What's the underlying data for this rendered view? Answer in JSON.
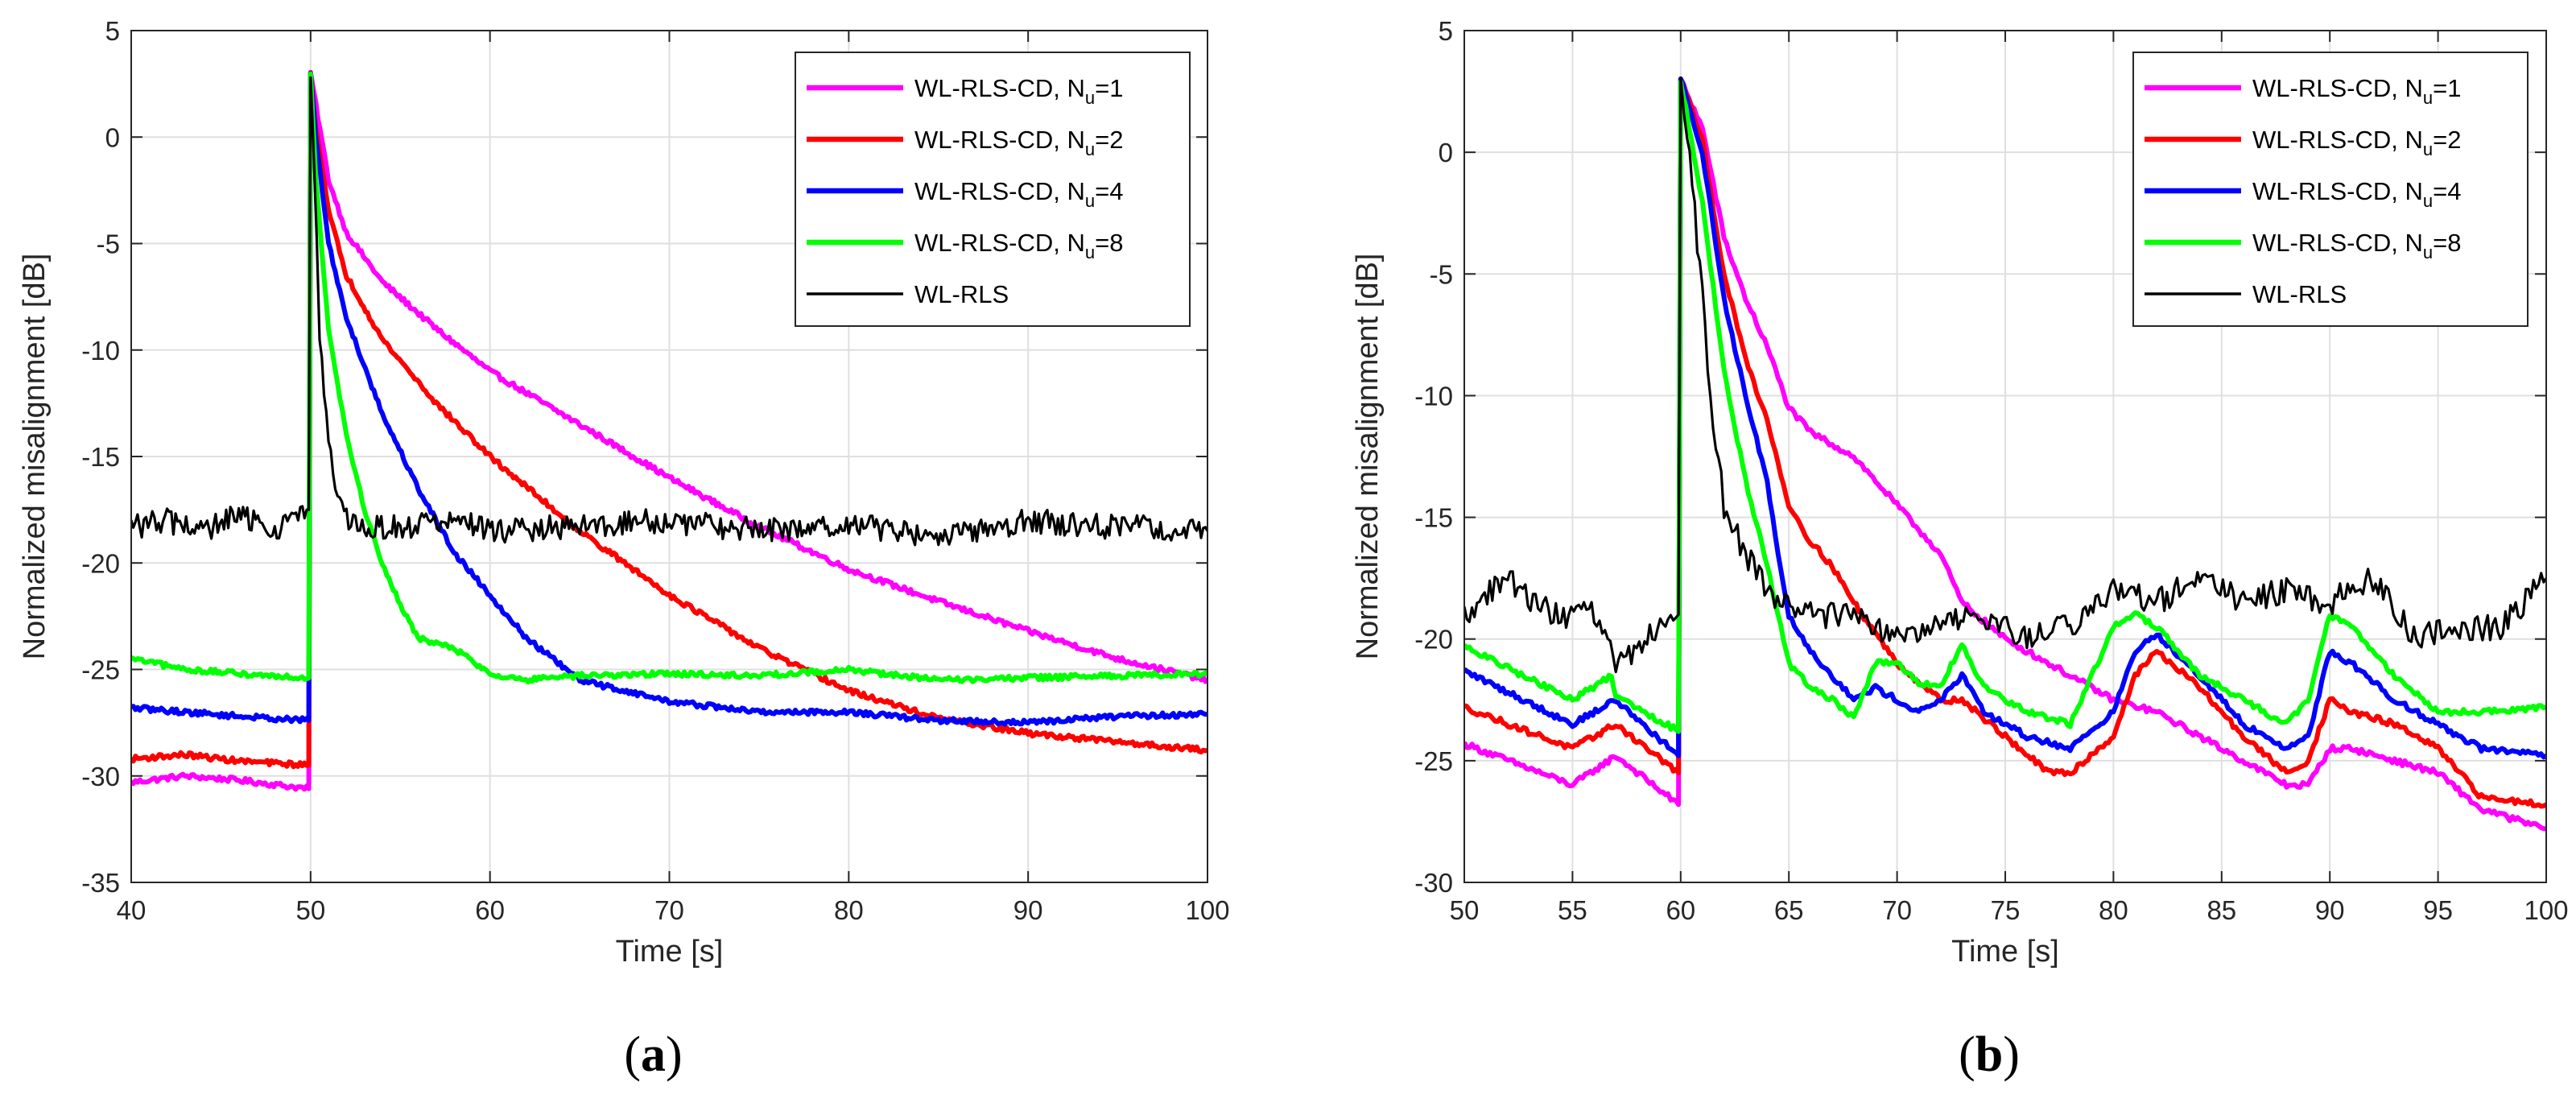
{
  "chart_data": [
    {
      "type": "line",
      "panel_label": "a",
      "xlabel": "Time [s]",
      "ylabel": "Normalized misalignment [dB]",
      "xlim": [
        40,
        100
      ],
      "ylim": [
        -35,
        5
      ],
      "xticks": [
        40,
        50,
        60,
        70,
        80,
        90,
        100
      ],
      "yticks": [
        5,
        0,
        -5,
        -10,
        -15,
        -20,
        -25,
        -30,
        -35
      ],
      "grid": true,
      "legend_position": "top-right",
      "series": [
        {
          "name": "WL-RLS-CD, N_u=1",
          "label_main": "WL-RLS-CD, N",
          "label_sub": "u",
          "label_tail": "=1",
          "color": "#ff00ff",
          "width": 3,
          "x": [
            40,
            43,
            46,
            49.9,
            50,
            50.3,
            51,
            52,
            54,
            57,
            60,
            65,
            70,
            75,
            80,
            85,
            90,
            95,
            100
          ],
          "y": [
            -30.3,
            -30.0,
            -30.2,
            -30.6,
            3.0,
            1.5,
            -2.0,
            -4.5,
            -6.8,
            -9.0,
            -11.0,
            -13.5,
            -16.0,
            -18.3,
            -20.3,
            -21.8,
            -23.2,
            -24.5,
            -25.5
          ]
        },
        {
          "name": "WL-RLS-CD, N_u=2",
          "label_main": "WL-RLS-CD, N",
          "label_sub": "u",
          "label_tail": "=2",
          "color": "#ff0000",
          "width": 3,
          "x": [
            40,
            43,
            46,
            49.9,
            50,
            50.3,
            51,
            52,
            54,
            57,
            60,
            65,
            70,
            75,
            80,
            85,
            90,
            95,
            100
          ],
          "y": [
            -29.2,
            -29.0,
            -29.3,
            -29.5,
            3.0,
            0.5,
            -3.5,
            -6.5,
            -9.5,
            -12.5,
            -15.0,
            -18.5,
            -21.5,
            -24.0,
            -26.0,
            -27.3,
            -28.0,
            -28.4,
            -28.8
          ]
        },
        {
          "name": "WL-RLS-CD, N_u=4",
          "label_main": "WL-RLS-CD, N",
          "label_sub": "u",
          "label_tail": "=4",
          "color": "#0000ff",
          "width": 3,
          "x": [
            40,
            43,
            46,
            49.9,
            50,
            50.3,
            51,
            52,
            54,
            56,
            58,
            60,
            62,
            65,
            70,
            75,
            80,
            85,
            90,
            95,
            100
          ],
          "y": [
            -26.8,
            -27.0,
            -27.2,
            -27.4,
            3.0,
            0.0,
            -5.0,
            -8.5,
            -13.0,
            -16.5,
            -19.5,
            -21.5,
            -23.5,
            -25.5,
            -26.5,
            -27.0,
            -27.0,
            -27.4,
            -27.5,
            -27.2,
            -27.1
          ]
        },
        {
          "name": "WL-RLS-CD, N_u=8",
          "label_main": "WL-RLS-CD, N",
          "label_sub": "u",
          "label_tail": "=8",
          "color": "#00ff00",
          "width": 3,
          "x": [
            40,
            43,
            46,
            49.9,
            50,
            50.3,
            51,
            52,
            53,
            54,
            55,
            56,
            57,
            58,
            60,
            62,
            65,
            70,
            75,
            80,
            85,
            90,
            95,
            100
          ],
          "y": [
            -24.5,
            -25.0,
            -25.2,
            -25.4,
            3.0,
            -2.0,
            -9.0,
            -14.0,
            -17.5,
            -20.0,
            -22.0,
            -23.5,
            -23.8,
            -24.0,
            -25.2,
            -25.5,
            -25.3,
            -25.2,
            -25.3,
            -25.0,
            -25.5,
            -25.4,
            -25.3,
            -25.2
          ]
        },
        {
          "name": "WL-RLS",
          "label_main": "WL-RLS",
          "label_sub": "",
          "label_tail": "",
          "color": "#000000",
          "width": 1.6,
          "x": [
            40,
            42,
            44,
            46,
            48,
            49.9,
            50,
            50.2,
            50.5,
            51,
            51.5,
            52,
            53,
            55,
            58,
            60,
            65,
            70,
            75,
            80,
            85,
            90,
            95,
            100
          ],
          "y": [
            -18.3,
            -18.0,
            -18.5,
            -17.8,
            -18.4,
            -17.5,
            3.0,
            -2.0,
            -9.0,
            -14.5,
            -17.0,
            -18.0,
            -18.4,
            -18.3,
            -18.0,
            -18.5,
            -18.3,
            -18.0,
            -18.5,
            -18.2,
            -18.8,
            -18.0,
            -18.3,
            -18.5
          ],
          "noise": 0.6
        }
      ]
    },
    {
      "type": "line",
      "panel_label": "b",
      "xlabel": "Time [s]",
      "ylabel": "Normalized misalignment [dB]",
      "xlim": [
        50,
        100
      ],
      "ylim": [
        -30,
        5
      ],
      "xticks": [
        50,
        55,
        60,
        65,
        70,
        75,
        80,
        85,
        90,
        95,
        100
      ],
      "yticks": [
        5,
        0,
        -5,
        -10,
        -15,
        -20,
        -25,
        -30
      ],
      "grid": true,
      "legend_position": "top-right",
      "series": [
        {
          "name": "WL-RLS-CD, N_u=1",
          "label_main": "WL-RLS-CD, N",
          "label_sub": "u",
          "label_tail": "=1",
          "color": "#ff00ff",
          "width": 3,
          "x": [
            50,
            55,
            57,
            59.9,
            60,
            61,
            62,
            63,
            64,
            65,
            66,
            67,
            68,
            69,
            70,
            71,
            72,
            73,
            75,
            78,
            80,
            82,
            85,
            88,
            89,
            90,
            91,
            93,
            95,
            97,
            100
          ],
          "y": [
            -24.3,
            -26.0,
            -24.8,
            -26.8,
            3.0,
            1.0,
            -3.5,
            -6.0,
            -8.0,
            -10.5,
            -11.5,
            -12.0,
            -12.5,
            -13.5,
            -14.5,
            -15.5,
            -16.5,
            -18.5,
            -20.0,
            -21.5,
            -22.5,
            -23.0,
            -24.5,
            -26.0,
            -26.0,
            -24.5,
            -24.5,
            -25.0,
            -25.5,
            -27.0,
            -27.8
          ]
        },
        {
          "name": "WL-RLS-CD, N_u=2",
          "label_main": "WL-RLS-CD, N",
          "label_sub": "u",
          "label_tail": "=2",
          "color": "#ff0000",
          "width": 3,
          "x": [
            50,
            55,
            57,
            59.9,
            60,
            61,
            62,
            63,
            64,
            65,
            66,
            67,
            68,
            70,
            72,
            73,
            75,
            77,
            78,
            80,
            81,
            82,
            84,
            86,
            88,
            89,
            90,
            91,
            93,
            95,
            97,
            100
          ],
          "y": [
            -22.8,
            -24.5,
            -23.5,
            -25.5,
            3.0,
            0.5,
            -5.0,
            -8.5,
            -11.0,
            -14.5,
            -16.0,
            -17.0,
            -18.5,
            -21.0,
            -22.5,
            -22.5,
            -24.0,
            -25.5,
            -25.5,
            -24.0,
            -21.5,
            -20.5,
            -22.0,
            -24.0,
            -25.5,
            -25.0,
            -22.5,
            -23.0,
            -23.5,
            -24.5,
            -26.5,
            -26.8
          ]
        },
        {
          "name": "WL-RLS-CD, N_u=4",
          "label_main": "WL-RLS-CD, N",
          "label_sub": "u",
          "label_tail": "=4",
          "color": "#0000ff",
          "width": 3,
          "x": [
            50,
            55,
            57,
            59.9,
            60,
            61,
            62,
            63,
            64,
            64.5,
            65,
            66,
            67,
            68,
            69,
            70,
            71,
            72,
            73,
            74,
            76,
            78,
            80,
            81,
            82,
            84,
            86,
            88,
            89,
            90,
            91,
            93,
            95,
            97,
            100
          ],
          "y": [
            -21.3,
            -23.5,
            -22.5,
            -24.8,
            3.0,
            0.0,
            -6.0,
            -10.0,
            -13.5,
            -16.5,
            -19.0,
            -20.5,
            -21.5,
            -22.5,
            -22.0,
            -22.5,
            -23.0,
            -22.5,
            -21.5,
            -23.0,
            -24.0,
            -24.5,
            -23.0,
            -20.5,
            -19.8,
            -21.5,
            -23.5,
            -24.5,
            -24.0,
            -20.5,
            -21.0,
            -22.5,
            -23.5,
            -24.5,
            -24.8
          ]
        },
        {
          "name": "WL-RLS-CD, N_u=8",
          "label_main": "WL-RLS-CD, N",
          "label_sub": "u",
          "label_tail": "=8",
          "color": "#00ff00",
          "width": 3,
          "x": [
            50,
            55,
            56.8,
            57,
            59.9,
            60,
            61,
            62,
            63,
            64,
            65,
            66,
            67,
            68,
            69,
            70,
            71,
            72,
            73,
            74,
            76,
            78,
            79,
            80,
            81,
            82,
            84,
            86,
            88,
            89,
            90,
            91,
            93,
            95,
            97,
            100
          ],
          "y": [
            -20.3,
            -22.5,
            -21.5,
            -22.3,
            -23.8,
            3.0,
            -2.0,
            -9.0,
            -13.5,
            -17.0,
            -21.0,
            -22.0,
            -22.5,
            -23.2,
            -21.0,
            -21.0,
            -21.8,
            -22.0,
            -20.2,
            -22.0,
            -23.0,
            -23.5,
            -21.5,
            -19.5,
            -19.0,
            -19.5,
            -21.5,
            -22.5,
            -23.5,
            -22.5,
            -19.0,
            -19.5,
            -21.5,
            -23.0,
            -23.0,
            -22.8
          ]
        },
        {
          "name": "WL-RLS",
          "label_main": "WL-RLS",
          "label_sub": "",
          "label_tail": "",
          "color": "#000000",
          "width": 1.6,
          "x": [
            50,
            52,
            54,
            56,
            57,
            59.9,
            60,
            60.3,
            61,
            61.5,
            62,
            63,
            64,
            66,
            68,
            70,
            72,
            74,
            76,
            78,
            80,
            82,
            84,
            86,
            88,
            90,
            92,
            94,
            96,
            98,
            100
          ],
          "y": [
            -19.0,
            -17.5,
            -19.0,
            -19.0,
            -21.0,
            -19.0,
            3.0,
            1.0,
            -6.0,
            -11.0,
            -14.5,
            -16.5,
            -18.0,
            -19.0,
            -19.0,
            -20.0,
            -19.5,
            -19.0,
            -20.0,
            -19.5,
            -18.0,
            -18.5,
            -17.5,
            -18.5,
            -18.0,
            -18.5,
            -17.5,
            -20.0,
            -19.5,
            -19.5,
            -17.5
          ],
          "noise": 0.55
        }
      ]
    }
  ]
}
